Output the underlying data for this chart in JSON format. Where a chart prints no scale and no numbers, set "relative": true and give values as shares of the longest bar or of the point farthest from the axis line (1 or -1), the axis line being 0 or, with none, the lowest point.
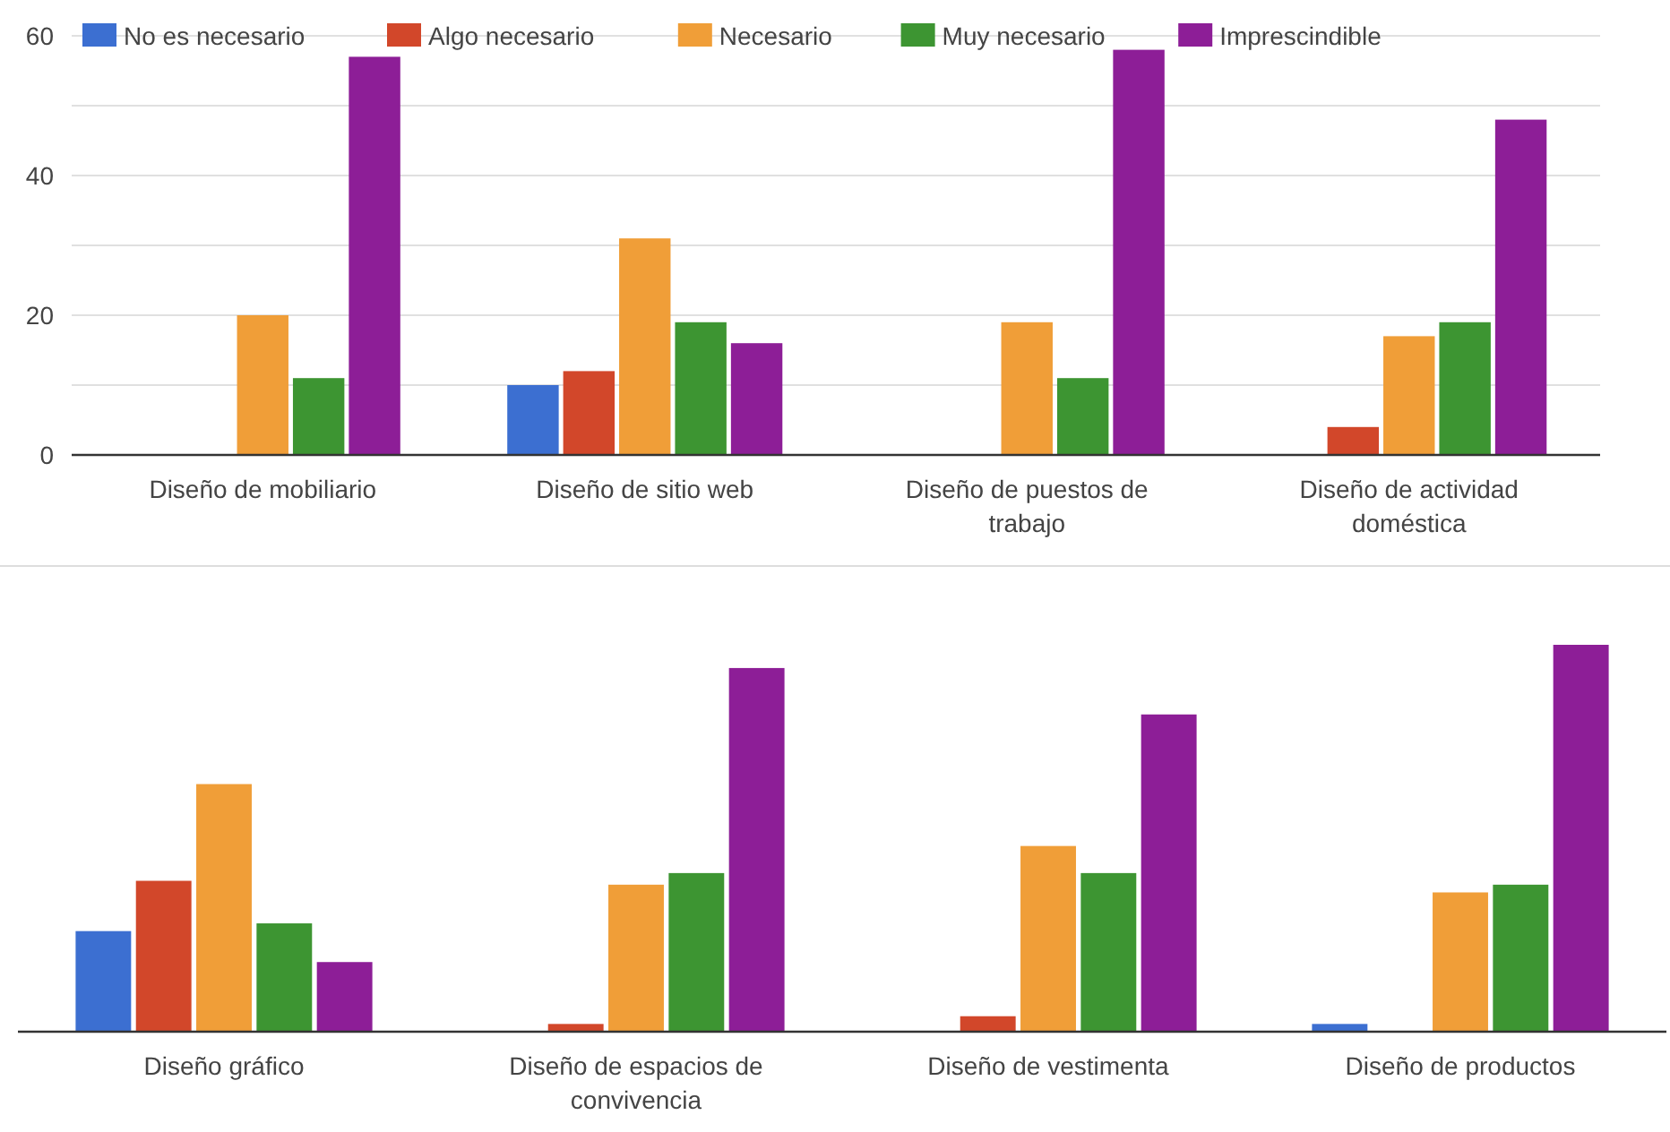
{
  "chart_data": [
    {
      "type": "bar",
      "categories": [
        "Diseño de mobiliario",
        "Diseño de sitio web",
        "Diseño de puestos de trabajo",
        "Diseño de actividad doméstica"
      ],
      "series": [
        {
          "name": "No es necesario",
          "color": "#3c6fd1",
          "values": [
            0,
            10,
            0,
            0
          ]
        },
        {
          "name": "Algo necesario",
          "color": "#d2472a",
          "values": [
            0,
            12,
            0,
            4
          ]
        },
        {
          "name": "Necesario",
          "color": "#f09e38",
          "values": [
            20,
            31,
            19,
            17
          ]
        },
        {
          "name": "Muy necesario",
          "color": "#3d9532",
          "values": [
            11,
            19,
            11,
            19
          ]
        },
        {
          "name": "Imprescindible",
          "color": "#8d1e97",
          "values": [
            57,
            16,
            58,
            48
          ]
        }
      ],
      "ylim": [
        0,
        60
      ],
      "yticks": [
        0,
        {
          "value": 10,
          "label": null
        },
        20,
        {
          "value": 30,
          "label": null
        },
        40,
        {
          "value": 50,
          "label": null
        },
        60
      ],
      "grid": "y",
      "legend": "top"
    },
    {
      "type": "bar",
      "relative": true,
      "categories": [
        "Diseño gráfico",
        "Diseño de espacios de convivencia",
        "Diseño de vestimenta",
        "Diseño de productos"
      ],
      "series": [
        {
          "color": "#3c6fd1",
          "values": [
            0.26,
            0,
            0,
            0.02
          ]
        },
        {
          "color": "#d2472a",
          "values": [
            0.39,
            0.02,
            0.04,
            0
          ]
        },
        {
          "color": "#f09e38",
          "values": [
            0.64,
            0.38,
            0.48,
            0.36
          ]
        },
        {
          "color": "#3d9532",
          "values": [
            0.28,
            0.41,
            0.41,
            0.38
          ]
        },
        {
          "color": "#8d1e97",
          "values": [
            0.18,
            0.94,
            0.82,
            1
          ]
        }
      ]
    }
  ]
}
